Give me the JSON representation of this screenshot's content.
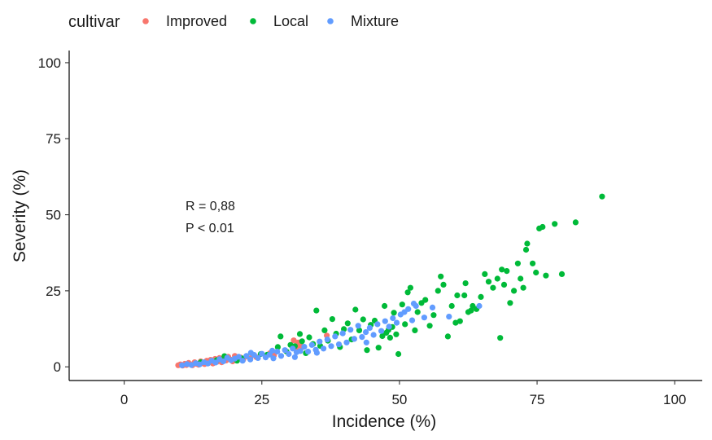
{
  "chart_data": {
    "type": "scatter",
    "xlabel": "Incidence (%)",
    "ylabel": "Severity (%)",
    "xlim": [
      -10,
      105
    ],
    "ylim": [
      -4.5,
      104
    ],
    "xticks": [
      0,
      25,
      50,
      75,
      100
    ],
    "yticks": [
      0,
      25,
      50,
      75,
      100
    ],
    "grid": false,
    "legend": {
      "title": "cultivar",
      "placement": "top-left"
    },
    "annotations": [
      "R = 0,88",
      "P < 0.01"
    ],
    "series": [
      {
        "name": "Improved",
        "color": "#F8766D",
        "points": [
          [
            9.8,
            0.5
          ],
          [
            10.2,
            0.8
          ],
          [
            10.6,
            0.4
          ],
          [
            11.0,
            1.0
          ],
          [
            11.3,
            0.6
          ],
          [
            11.7,
            1.3
          ],
          [
            12.1,
            0.8
          ],
          [
            12.4,
            0.5
          ],
          [
            12.8,
            1.5
          ],
          [
            13.1,
            1.0
          ],
          [
            13.5,
            0.7
          ],
          [
            13.9,
            1.8
          ],
          [
            14.2,
            1.2
          ],
          [
            14.6,
            0.9
          ],
          [
            15.0,
            2.0
          ],
          [
            15.4,
            1.4
          ],
          [
            15.7,
            2.3
          ],
          [
            16.1,
            1.1
          ],
          [
            16.5,
            2.6
          ],
          [
            16.9,
            1.7
          ],
          [
            17.3,
            2.9
          ],
          [
            17.7,
            1.5
          ],
          [
            18.1,
            3.0
          ],
          [
            18.5,
            2.1
          ],
          [
            18.9,
            3.3
          ],
          [
            19.3,
            2.4
          ],
          [
            19.7,
            1.8
          ],
          [
            20.1,
            3.6
          ],
          [
            20.6,
            2.7
          ],
          [
            21.1,
            3.1
          ],
          [
            21.6,
            2.3
          ],
          [
            22.2,
            3.4
          ],
          [
            22.9,
            2.8
          ],
          [
            24.0,
            3.2
          ],
          [
            26.5,
            4.5
          ],
          [
            27.2,
            3.8
          ],
          [
            30.8,
            8.7
          ],
          [
            31.2,
            6.0
          ],
          [
            31.6,
            8.0
          ],
          [
            32.0,
            7.0
          ],
          [
            32.4,
            6.5
          ],
          [
            36.8,
            10.3
          ]
        ]
      },
      {
        "name": "Local",
        "color": "#00BA38",
        "points": [
          [
            13.9,
            1.5
          ],
          [
            16.8,
            2.2
          ],
          [
            18.2,
            3.5
          ],
          [
            20.5,
            2.0
          ],
          [
            21.4,
            2.8
          ],
          [
            24.8,
            4.2
          ],
          [
            26.0,
            4.0
          ],
          [
            27.9,
            6.5
          ],
          [
            28.4,
            10.0
          ],
          [
            29.5,
            5.0
          ],
          [
            30.2,
            7.2
          ],
          [
            31.0,
            6.8
          ],
          [
            31.9,
            10.8
          ],
          [
            32.3,
            8.4
          ],
          [
            33.0,
            4.5
          ],
          [
            33.6,
            9.7
          ],
          [
            34.3,
            7.5
          ],
          [
            34.9,
            18.5
          ],
          [
            35.6,
            6.9
          ],
          [
            36.4,
            12.0
          ],
          [
            37.0,
            8.6
          ],
          [
            37.8,
            15.7
          ],
          [
            38.5,
            10.9
          ],
          [
            39.2,
            6.5
          ],
          [
            39.9,
            12.4
          ],
          [
            40.6,
            14.3
          ],
          [
            41.3,
            9.0
          ],
          [
            42.0,
            18.8
          ],
          [
            42.7,
            12.0
          ],
          [
            43.4,
            15.6
          ],
          [
            44.1,
            5.5
          ],
          [
            44.8,
            13.8
          ],
          [
            45.5,
            15.2
          ],
          [
            46.2,
            6.3
          ],
          [
            46.9,
            10.1
          ],
          [
            47.3,
            20.0
          ],
          [
            47.6,
            11.2
          ],
          [
            48.0,
            12.1
          ],
          [
            48.3,
            9.6
          ],
          [
            48.7,
            13.1
          ],
          [
            49.0,
            17.8
          ],
          [
            49.4,
            10.7
          ],
          [
            49.8,
            4.2
          ],
          [
            50.5,
            20.5
          ],
          [
            51.0,
            14.0
          ],
          [
            51.5,
            24.5
          ],
          [
            52.0,
            26.0
          ],
          [
            52.8,
            12.0
          ],
          [
            53.3,
            18.0
          ],
          [
            54.0,
            21.0
          ],
          [
            54.7,
            22.0
          ],
          [
            55.5,
            13.5
          ],
          [
            56.2,
            17.0
          ],
          [
            57.0,
            25.0
          ],
          [
            57.5,
            29.7
          ],
          [
            58.0,
            27.0
          ],
          [
            58.8,
            10.0
          ],
          [
            59.5,
            20.0
          ],
          [
            60.2,
            14.5
          ],
          [
            61.0,
            15.0
          ],
          [
            61.8,
            23.5
          ],
          [
            62.5,
            18.0
          ],
          [
            63.3,
            20.0
          ],
          [
            64.0,
            19.0
          ],
          [
            64.8,
            23.0
          ],
          [
            65.5,
            30.5
          ],
          [
            66.2,
            28.0
          ],
          [
            67.0,
            26.0
          ],
          [
            67.8,
            29.0
          ],
          [
            68.3,
            9.5
          ],
          [
            68.6,
            32.0
          ],
          [
            69.0,
            27.0
          ],
          [
            69.5,
            31.5
          ],
          [
            70.1,
            21.0
          ],
          [
            70.8,
            25.0
          ],
          [
            71.5,
            34.0
          ],
          [
            72.0,
            29.0
          ],
          [
            72.5,
            26.0
          ],
          [
            73.0,
            38.5
          ],
          [
            73.2,
            40.5
          ],
          [
            74.2,
            34.0
          ],
          [
            74.8,
            31.0
          ],
          [
            75.4,
            45.5
          ],
          [
            76.0,
            46.0
          ],
          [
            76.6,
            30.0
          ],
          [
            78.2,
            47.0
          ],
          [
            79.5,
            30.5
          ],
          [
            82.0,
            47.5
          ],
          [
            86.8,
            56.0
          ],
          [
            62.0,
            27.5
          ],
          [
            63.0,
            18.5
          ],
          [
            60.5,
            23.5
          ]
        ]
      },
      {
        "name": "Mixture",
        "color": "#619CFF",
        "points": [
          [
            10.5,
            0.5
          ],
          [
            11.4,
            0.9
          ],
          [
            12.2,
            0.6
          ],
          [
            13.0,
            1.2
          ],
          [
            13.7,
            0.8
          ],
          [
            14.5,
            1.5
          ],
          [
            15.2,
            1.1
          ],
          [
            15.9,
            2.0
          ],
          [
            16.6,
            1.4
          ],
          [
            17.3,
            2.5
          ],
          [
            18.0,
            1.8
          ],
          [
            18.7,
            3.0
          ],
          [
            19.4,
            2.2
          ],
          [
            20.1,
            2.7
          ],
          [
            20.8,
            3.3
          ],
          [
            21.5,
            2.0
          ],
          [
            22.2,
            3.6
          ],
          [
            22.9,
            2.4
          ],
          [
            23.6,
            3.9
          ],
          [
            24.3,
            2.9
          ],
          [
            25.0,
            4.3
          ],
          [
            25.7,
            3.1
          ],
          [
            26.4,
            4.0
          ],
          [
            27.1,
            2.8
          ],
          [
            27.8,
            5.0
          ],
          [
            28.5,
            3.6
          ],
          [
            29.2,
            5.5
          ],
          [
            29.9,
            4.2
          ],
          [
            30.6,
            6.0
          ],
          [
            31.3,
            4.8
          ],
          [
            32.0,
            5.2
          ],
          [
            32.7,
            6.6
          ],
          [
            33.4,
            5.0
          ],
          [
            34.1,
            7.2
          ],
          [
            34.8,
            5.6
          ],
          [
            35.5,
            8.3
          ],
          [
            36.2,
            6.0
          ],
          [
            36.9,
            9.0
          ],
          [
            37.6,
            6.8
          ],
          [
            38.3,
            10.0
          ],
          [
            39.0,
            7.4
          ],
          [
            39.7,
            11.0
          ],
          [
            40.4,
            8.0
          ],
          [
            41.1,
            12.2
          ],
          [
            41.8,
            9.2
          ],
          [
            42.5,
            13.5
          ],
          [
            43.2,
            9.8
          ],
          [
            43.9,
            11.4
          ],
          [
            44.6,
            12.8
          ],
          [
            45.3,
            10.5
          ],
          [
            46.0,
            14.0
          ],
          [
            46.7,
            11.8
          ],
          [
            47.4,
            15.0
          ],
          [
            48.1,
            13.2
          ],
          [
            48.8,
            16.0
          ],
          [
            49.5,
            14.5
          ],
          [
            50.2,
            17.2
          ],
          [
            50.9,
            18.0
          ],
          [
            51.6,
            19.0
          ],
          [
            52.3,
            15.3
          ],
          [
            53.0,
            20.0
          ],
          [
            54.5,
            16.2
          ],
          [
            56.0,
            19.5
          ],
          [
            59.0,
            16.5
          ],
          [
            64.5,
            20.0
          ],
          [
            23.0,
            4.6
          ],
          [
            26.9,
            5.3
          ],
          [
            31.0,
            3.2
          ],
          [
            35.0,
            4.6
          ],
          [
            44.0,
            8.0
          ],
          [
            52.6,
            20.8
          ]
        ]
      }
    ]
  }
}
